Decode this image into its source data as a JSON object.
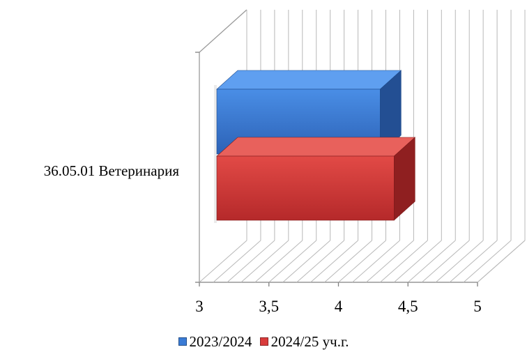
{
  "chart_data": {
    "type": "bar",
    "orientation": "horizontal",
    "style": "3d",
    "categories": [
      "36.05.01 Ветеринария"
    ],
    "series": [
      {
        "name": "2023/2024",
        "values": [
          4.3
        ],
        "color": "#3a7bd5"
      },
      {
        "name": "2024/25 уч.г.",
        "values": [
          4.4
        ],
        "color": "#d93b3b"
      }
    ],
    "xlim": [
      3,
      5
    ],
    "x_ticks": [
      "3",
      "3,5",
      "4",
      "4,5",
      "5"
    ],
    "grid": true,
    "legend": "bottom"
  }
}
